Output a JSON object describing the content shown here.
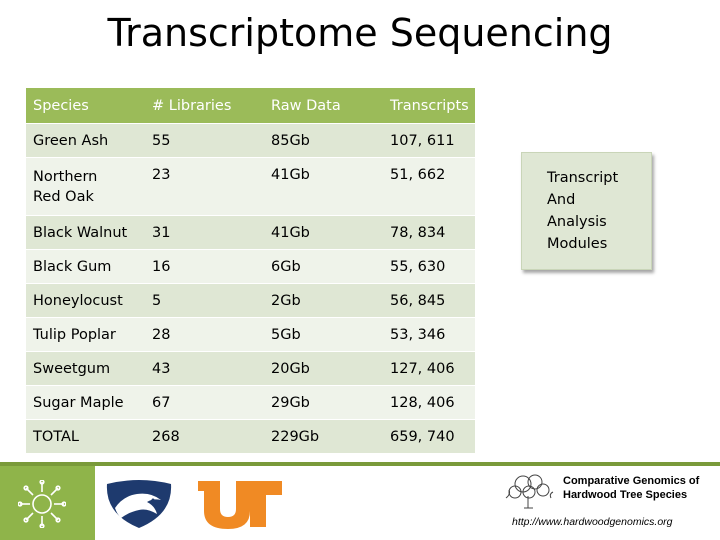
{
  "slide": {
    "title": "Transcriptome Sequencing"
  },
  "table": {
    "headers": [
      "Species",
      "# Libraries",
      "Raw Data",
      "Transcripts"
    ],
    "rows": [
      {
        "species": "Green Ash",
        "libraries": "55",
        "raw_data": "85Gb",
        "transcripts": "107, 611"
      },
      {
        "species": "Northern Red Oak",
        "libraries": "23",
        "raw_data": "41Gb",
        "transcripts": "51, 662"
      },
      {
        "species": "Black Walnut",
        "libraries": "31",
        "raw_data": "41Gb",
        "transcripts": "78, 834"
      },
      {
        "species": "Black Gum",
        "libraries": "16",
        "raw_data": "6Gb",
        "transcripts": "55, 630"
      },
      {
        "species": "Honeylocust",
        "libraries": "5",
        "raw_data": "2Gb",
        "transcripts": "56, 845"
      },
      {
        "species": "Tulip Poplar",
        "libraries": "28",
        "raw_data": "5Gb",
        "transcripts": "53, 346"
      },
      {
        "species": "Sweetgum",
        "libraries": "43",
        "raw_data": "20Gb",
        "transcripts": "127, 406"
      },
      {
        "species": "Sugar Maple",
        "libraries": "67",
        "raw_data": "29Gb",
        "transcripts": "128, 406"
      },
      {
        "species": "TOTAL",
        "libraries": "268",
        "raw_data": "229Gb",
        "transcripts": "659, 740"
      }
    ]
  },
  "module_box": {
    "lines": [
      "Transcript",
      "And",
      "Analysis",
      "Modules"
    ]
  },
  "footer": {
    "brand_line1": "Comparative Genomics of",
    "brand_line2": "Hardwood Tree Species",
    "url": "http://www.hardwoodgenomics.org",
    "logos": [
      "nsf-logo",
      "penn-state-logo",
      "ut-logo",
      "tree-icon"
    ]
  },
  "colors": {
    "header_green": "#9bbb59",
    "row_odd": "#dfe7d4",
    "row_even": "#eff3ea",
    "footer_green": "#8fb44a",
    "psu_navy": "#1e3a6e",
    "ut_orange": "#f08a24"
  }
}
